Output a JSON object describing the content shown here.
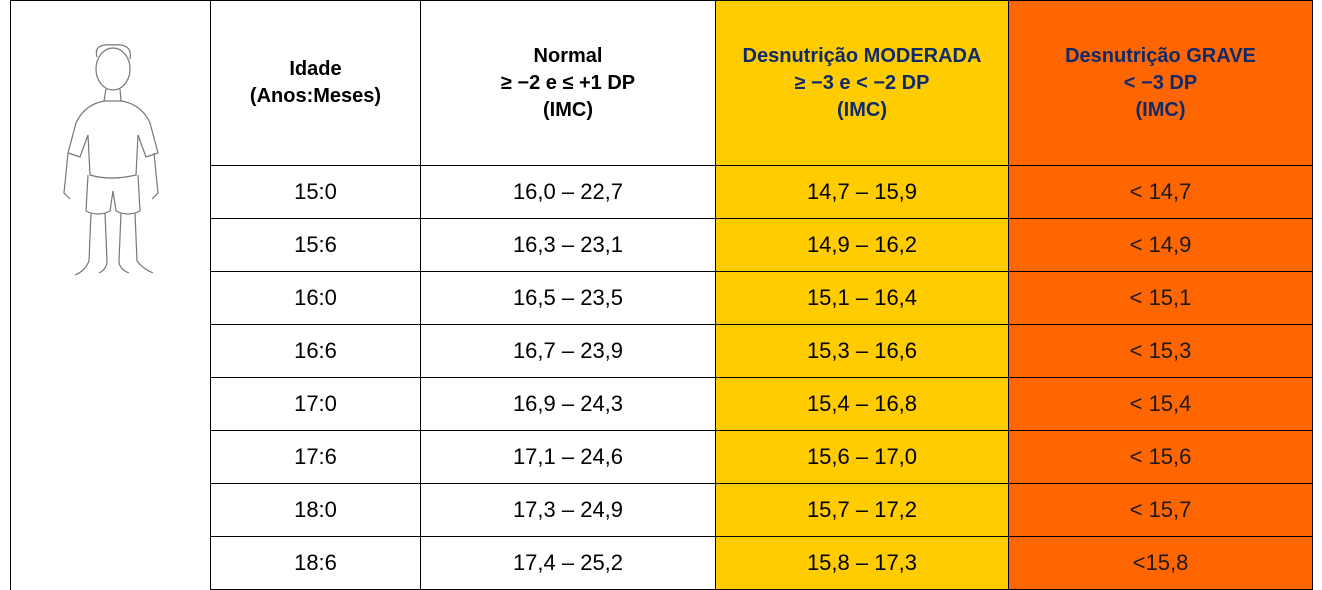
{
  "table": {
    "header": [
      [
        "Idade",
        "(Anos:Meses)"
      ],
      [
        "Normal",
        "≥ −2 e ≤ +1 DP",
        "(IMC)"
      ],
      [
        "Desnutrição MODERADA",
        "≥ −3 e < −2 DP",
        "(IMC)"
      ],
      [
        "Desnutrição GRAVE",
        "< −3 DP",
        "(IMC)"
      ]
    ],
    "rows": [
      [
        "15:0",
        "16,0 – 22,7",
        "14,7 – 15,9",
        "< 14,7"
      ],
      [
        "15:6",
        "16,3 – 23,1",
        "14,9 – 16,2",
        "< 14,9"
      ],
      [
        "16:0",
        "16,5 – 23,5",
        "15,1 – 16,4",
        "< 15,1"
      ],
      [
        "16:6",
        "16,7 – 23,9",
        "15,3 – 16,6",
        "< 15,3"
      ],
      [
        "17:0",
        "16,9 – 24,3",
        "15,4 – 16,8",
        "< 15,4"
      ],
      [
        "17:6",
        "17,1 – 24,6",
        "15,6 – 17,0",
        "< 15,6"
      ],
      [
        "18:0",
        "17,3 – 24,9",
        "15,7 – 17,2",
        "< 15,7"
      ],
      [
        "18:6",
        "17,4 – 25,2",
        "15,8 – 17,3",
        "<15,8"
      ]
    ]
  }
}
